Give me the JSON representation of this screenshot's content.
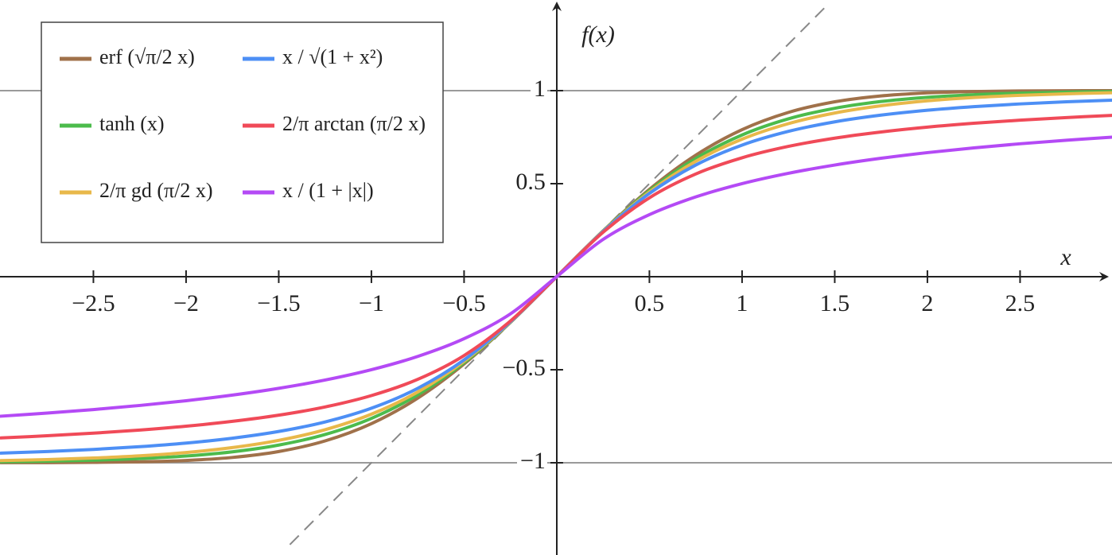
{
  "chart_data": {
    "type": "line",
    "x_label": "x",
    "y_label": "f(x)",
    "x": [
      -3,
      -2.75,
      -2.5,
      -2.25,
      -2,
      -1.75,
      -1.5,
      -1.25,
      -1,
      -0.75,
      -0.5,
      -0.25,
      0,
      0.25,
      0.5,
      0.75,
      1,
      1.25,
      1.5,
      1.75,
      2,
      2.25,
      2.5,
      2.75,
      3
    ],
    "series": [
      {
        "name": "erf (√π/2 x)",
        "color": "#a0714a",
        "values": [
          -0.9998,
          -0.9995,
          -0.9983,
          -0.9952,
          -0.9878,
          -0.9717,
          -0.9399,
          -0.8828,
          -0.79,
          -0.6528,
          -0.4691,
          -0.246,
          0,
          0.246,
          0.4691,
          0.6528,
          0.79,
          0.8828,
          0.9399,
          0.9717,
          0.9878,
          0.9952,
          0.9983,
          0.9995,
          0.9998
        ]
      },
      {
        "name": "tanh (x)",
        "color": "#4cbb4c",
        "values": [
          -0.9951,
          -0.9919,
          -0.9866,
          -0.978,
          -0.964,
          -0.9414,
          -0.9051,
          -0.8483,
          -0.7616,
          -0.6351,
          -0.4621,
          -0.2449,
          0,
          0.2449,
          0.4621,
          0.6351,
          0.7616,
          0.8483,
          0.9051,
          0.9414,
          0.964,
          0.978,
          0.9866,
          0.9919,
          0.9951
        ]
      },
      {
        "name": "2/π gd (π/2 x)",
        "color": "#e8b84a",
        "values": [
          -0.9886,
          -0.9829,
          -0.9748,
          -0.9629,
          -0.9451,
          -0.9186,
          -0.8797,
          -0.8225,
          -0.7391,
          -0.62,
          -0.455,
          -0.2438,
          0,
          0.2438,
          0.455,
          0.62,
          0.7391,
          0.8225,
          0.8797,
          0.9186,
          0.9451,
          0.9629,
          0.9748,
          0.9829,
          0.9886
        ]
      },
      {
        "name": "x / √(1 + x²)",
        "color": "#4d8ff5",
        "values": [
          -0.9487,
          -0.9398,
          -0.9285,
          -0.9138,
          -0.8944,
          -0.8682,
          -0.8321,
          -0.7809,
          -0.7071,
          -0.6,
          -0.4472,
          -0.2425,
          0,
          0.2425,
          0.4472,
          0.6,
          0.7071,
          0.7809,
          0.8321,
          0.8682,
          0.8944,
          0.9138,
          0.9285,
          0.9398,
          0.9487
        ]
      },
      {
        "name": "2/π arctan (π/2 x)",
        "color": "#f04a58",
        "values": [
          -0.8669,
          -0.8552,
          -0.8412,
          -0.8245,
          -0.8038,
          -0.7777,
          -0.7445,
          -0.7002,
          -0.6391,
          -0.5518,
          -0.4239,
          -0.2385,
          0,
          0.2385,
          0.4239,
          0.5518,
          0.6391,
          0.7002,
          0.7445,
          0.7777,
          0.8038,
          0.8245,
          0.8412,
          0.8552,
          0.8669
        ]
      },
      {
        "name": "x / (1 + |x|)",
        "color": "#b44af5",
        "values": [
          -0.75,
          -0.7333,
          -0.7143,
          -0.6923,
          -0.6667,
          -0.6364,
          -0.6,
          -0.5556,
          -0.5,
          -0.4286,
          -0.3333,
          -0.2,
          0,
          0.2,
          0.3333,
          0.4286,
          0.5,
          0.5556,
          0.6,
          0.6364,
          0.6667,
          0.6923,
          0.7143,
          0.7333,
          0.75
        ]
      }
    ],
    "asymptotes": [
      1,
      -1
    ],
    "diagonal": {
      "x": [
        -1.44,
        1.46
      ],
      "y": [
        -1.44,
        1.46
      ]
    },
    "xlim": [
      -3.004,
      2.996
    ],
    "ylim": [
      -1.496,
      1.487
    ],
    "xticks": [
      {
        "value": -2.5,
        "label": "−2.5"
      },
      {
        "value": -2,
        "label": "−2"
      },
      {
        "value": -1.5,
        "label": "−1.5"
      },
      {
        "value": -1,
        "label": "−1"
      },
      {
        "value": -0.5,
        "label": "−0.5"
      },
      0.5,
      1,
      1.5,
      2,
      2.5
    ],
    "yticks": [
      {
        "value": -1,
        "label": "−1"
      },
      {
        "value": -0.5,
        "label": "−0.5"
      },
      0.5,
      1
    ],
    "legend": "upper left",
    "legend_columns": 2
  }
}
